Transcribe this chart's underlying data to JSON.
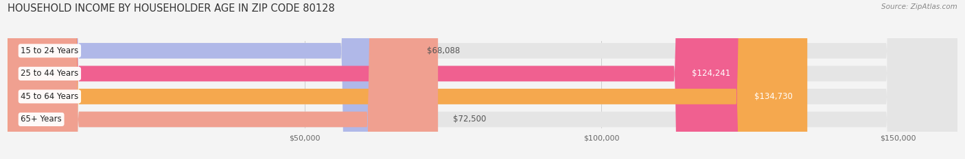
{
  "title": "HOUSEHOLD INCOME BY HOUSEHOLDER AGE IN ZIP CODE 80128",
  "source": "Source: ZipAtlas.com",
  "categories": [
    "15 to 24 Years",
    "25 to 44 Years",
    "45 to 64 Years",
    "65+ Years"
  ],
  "values": [
    68088,
    124241,
    134730,
    72500
  ],
  "bar_colors": [
    "#b0b8e8",
    "#f06090",
    "#f5a84e",
    "#f0a090"
  ],
  "label_inside": [
    false,
    true,
    true,
    false
  ],
  "xlim": [
    0,
    160000
  ],
  "xticks": [
    50000,
    100000,
    150000
  ],
  "xtick_labels": [
    "$50,000",
    "$100,000",
    "$150,000"
  ],
  "background_color": "#f4f4f4",
  "bar_bg_color": "#e5e5e5",
  "title_fontsize": 10.5,
  "source_fontsize": 7.5,
  "label_fontsize": 8.5,
  "tick_fontsize": 8,
  "category_fontsize": 8.5
}
